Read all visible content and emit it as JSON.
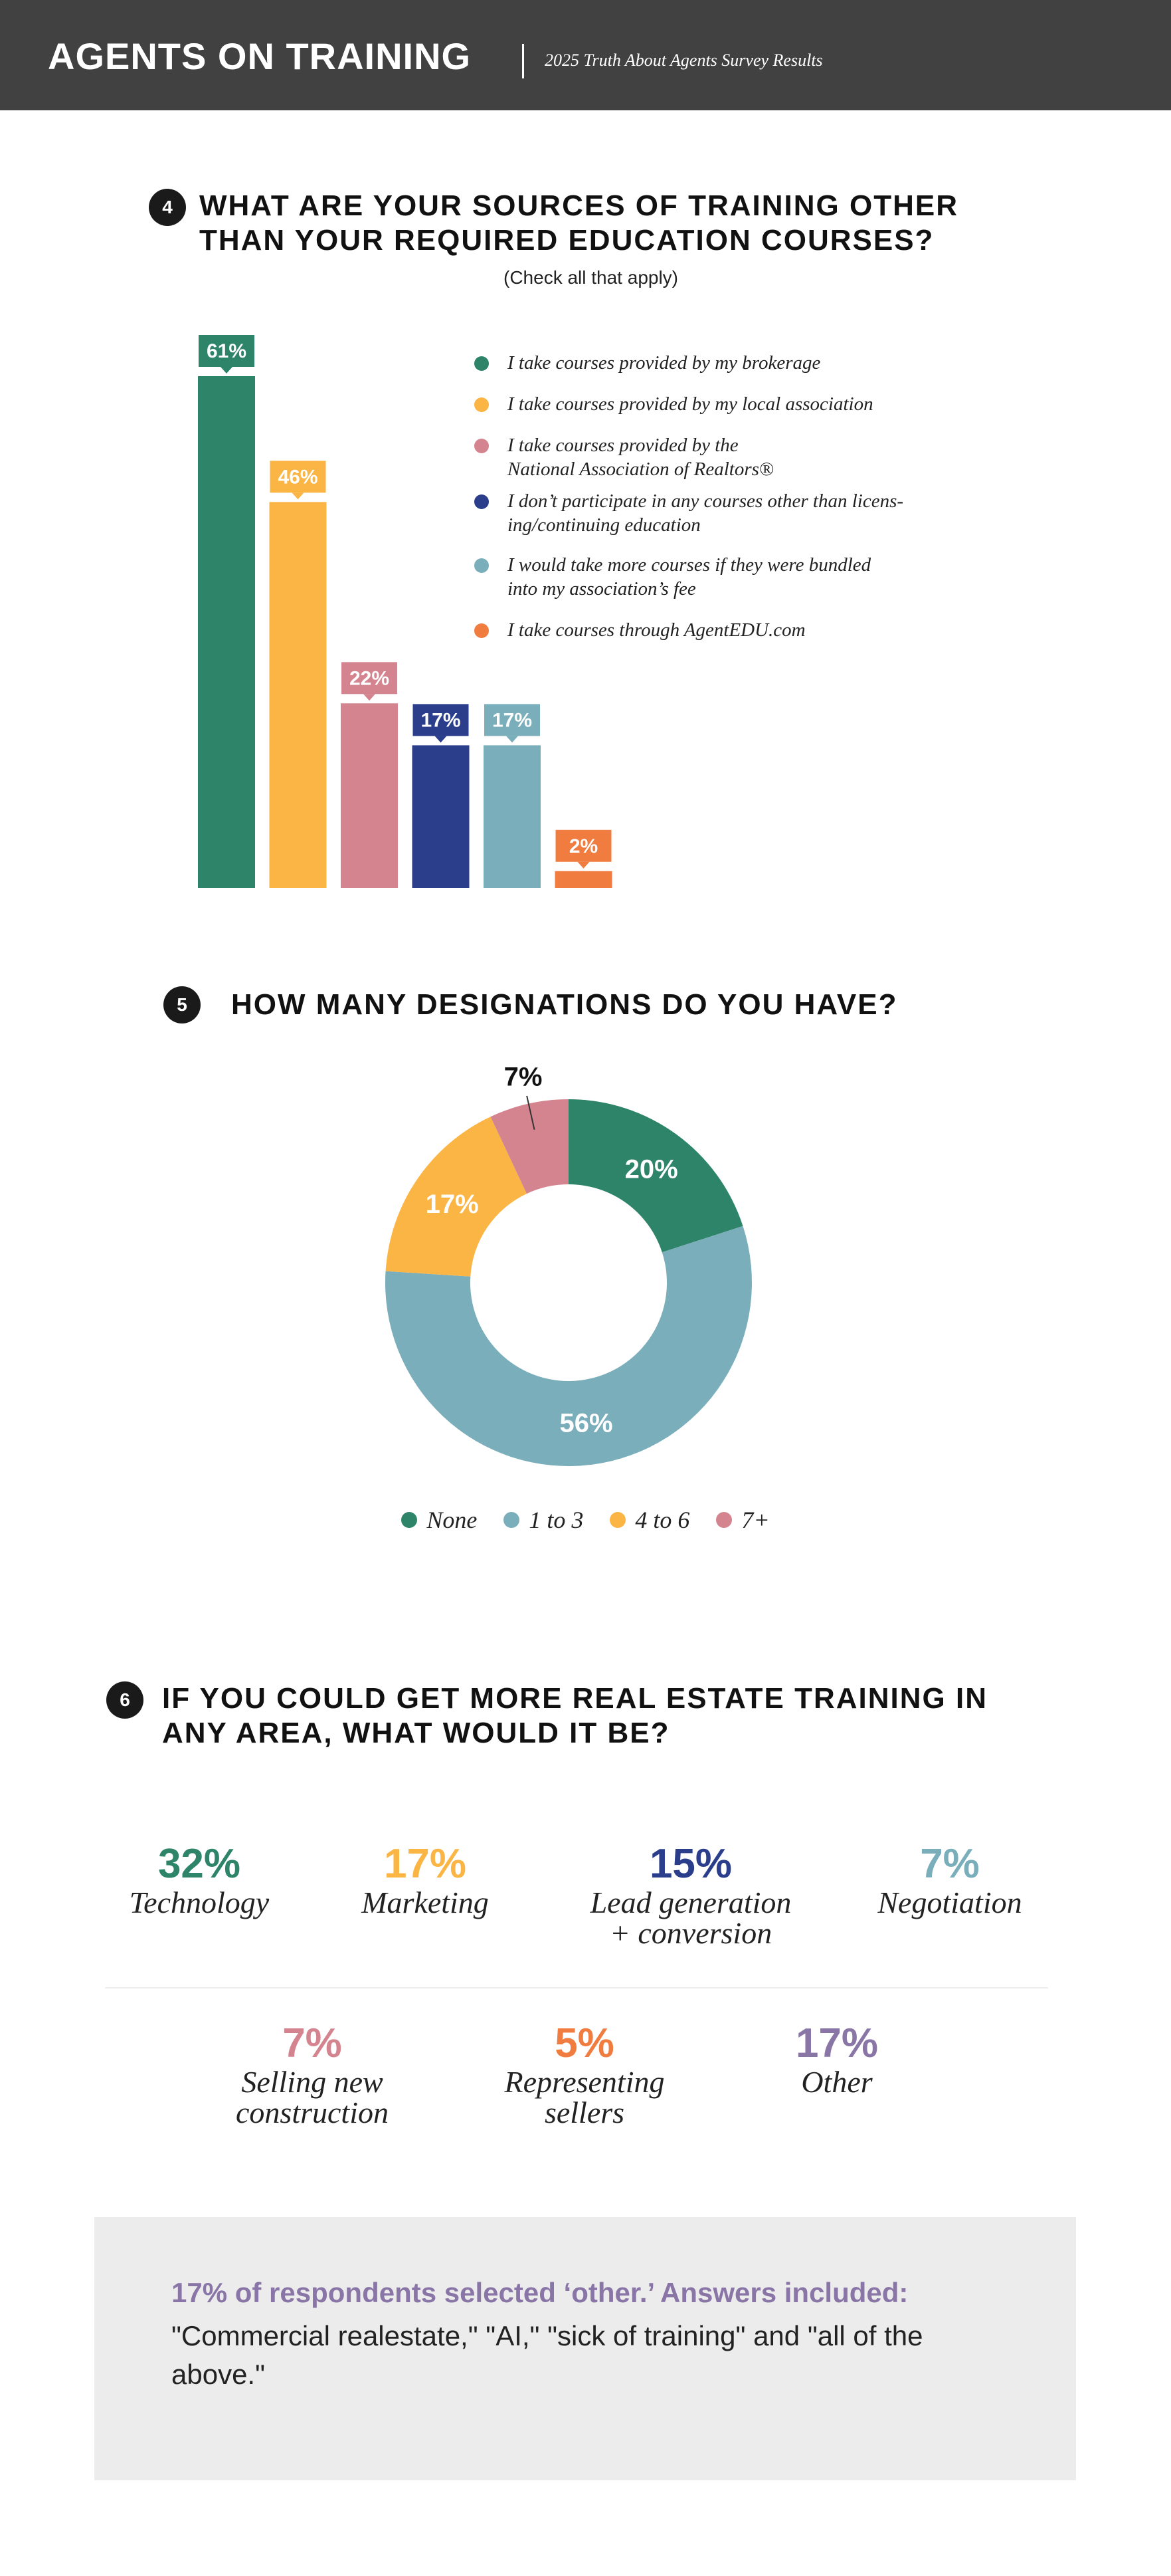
{
  "header": {
    "title": "AGENTS ON TRAINING",
    "subtitle": "2025 Truth About Agents Survey Results"
  },
  "q4": {
    "number": "4",
    "title_line1": "WHAT ARE YOUR SOURCES OF TRAINING OTHER",
    "title_line2": "THAN YOUR REQUIRED EDUCATION COURSES?",
    "note": "(Check all that apply)"
  },
  "q5": {
    "number": "5",
    "title": "HOW MANY DESIGNATIONS DO YOU HAVE?"
  },
  "q6": {
    "number": "6",
    "title_line1": "IF YOU COULD GET MORE REAL ESTATE TRAINING IN",
    "title_line2": "ANY AREA, WHAT WOULD IT BE?",
    "stats": [
      {
        "pct": "32%",
        "label1": "Technology",
        "label2": "",
        "color": "#2e8469"
      },
      {
        "pct": "17%",
        "label1": "Marketing",
        "label2": "",
        "color": "#fbb545"
      },
      {
        "pct": "15%",
        "label1": "Lead generation",
        "label2": "+ conversion",
        "color": "#2a3e8c"
      },
      {
        "pct": "7%",
        "label1": "Negotiation",
        "label2": "",
        "color": "#7aaebb"
      },
      {
        "pct": "7%",
        "label1": "Selling new",
        "label2": "construction",
        "color": "#d4848f"
      },
      {
        "pct": "5%",
        "label1": "Representing",
        "label2": "sellers",
        "color": "#f07c40"
      },
      {
        "pct": "17%",
        "label1": "Other",
        "label2": "",
        "color": "#8976a6"
      }
    ]
  },
  "footer": {
    "heading": "17% of respondents selected ‘other.’ Answers included:",
    "text": "\"Commercial realestate,\" \"AI,\" \"sick of training\" and \"all of the above.\""
  },
  "chart_data": [
    {
      "type": "bar",
      "categories": [
        "I take courses provided by my brokerage",
        "I take courses provided by my local association",
        "I take courses provided by the National Association of Realtors®",
        "I don’t participate in any courses other than licens-ing/continuing education",
        "I would take more courses if they were bundled into my association’s fee",
        "I take courses through AgentEDU.com"
      ],
      "legend_lines": [
        [
          "I take courses provided by my brokerage"
        ],
        [
          "I take courses provided by my local association"
        ],
        [
          "I take courses provided by the",
          "National Association of Realtors®"
        ],
        [
          "I don’t participate in any courses other than licens-",
          "ing/continuing education"
        ],
        [
          "I would take more courses if they were bundled",
          "into my association’s fee"
        ],
        [
          "I take courses through AgentEDU.com"
        ]
      ],
      "values": [
        61,
        46,
        22,
        17,
        17,
        2
      ],
      "labels": [
        "61%",
        "46%",
        "22%",
        "17%",
        "17%",
        "2%"
      ],
      "colors": [
        "#2e8469",
        "#fbb545",
        "#d4848f",
        "#2a3e8c",
        "#7aaebb",
        "#f07c40"
      ],
      "ylim": [
        0,
        61
      ],
      "legend": "right"
    },
    {
      "type": "pie",
      "donut": true,
      "categories": [
        "None",
        "1 to 3",
        "4 to 6",
        "7+"
      ],
      "values": [
        20,
        56,
        17,
        7
      ],
      "labels": [
        "20%",
        "56%",
        "17%",
        "7%"
      ],
      "colors": [
        "#2e8469",
        "#7aaebb",
        "#fbb545",
        "#d4848f"
      ],
      "legend": "bottom"
    }
  ]
}
